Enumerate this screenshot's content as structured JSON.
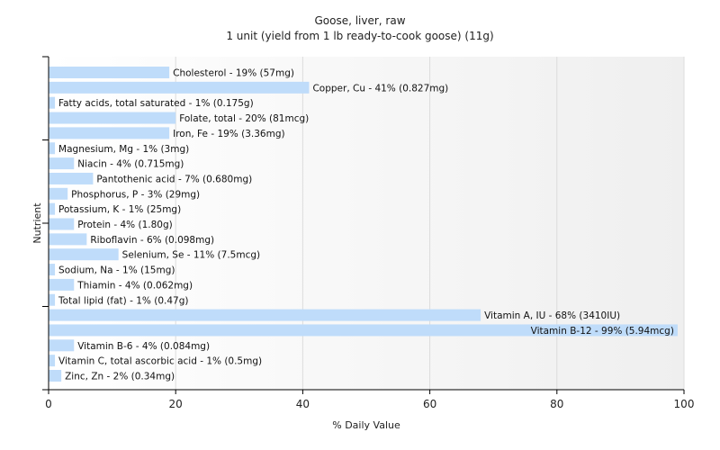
{
  "chart_data": {
    "type": "bar",
    "orientation": "horizontal",
    "title": "Goose, liver, raw",
    "subtitle": "1 unit (yield from 1 lb ready-to-cook goose) (11g)",
    "xlabel": "% Daily Value",
    "ylabel": "Nutrient",
    "xlim": [
      0,
      100
    ],
    "xticks": [
      0,
      20,
      40,
      60,
      80,
      100
    ],
    "grid": true,
    "bar_color": "#bfdcfa",
    "categories": [
      "Cholesterol",
      "Copper, Cu",
      "Fatty acids, total saturated",
      "Folate, total",
      "Iron, Fe",
      "Magnesium, Mg",
      "Niacin",
      "Pantothenic acid",
      "Phosphorus, P",
      "Potassium, K",
      "Protein",
      "Riboflavin",
      "Selenium, Se",
      "Sodium, Na",
      "Thiamin",
      "Total lipid (fat)",
      "Vitamin A, IU",
      "Vitamin B-12",
      "Vitamin B-6",
      "Vitamin C, total ascorbic acid",
      "Zinc, Zn"
    ],
    "values": [
      19,
      41,
      1,
      20,
      19,
      1,
      4,
      7,
      3,
      1,
      4,
      6,
      11,
      1,
      4,
      1,
      68,
      99,
      4,
      1,
      2
    ],
    "labels": [
      "Cholesterol - 19% (57mg)",
      "Copper, Cu - 41% (0.827mg)",
      "Fatty acids, total saturated - 1% (0.175g)",
      "Folate, total - 20% (81mcg)",
      "Iron, Fe - 19% (3.36mg)",
      "Magnesium, Mg - 1% (3mg)",
      "Niacin - 4% (0.715mg)",
      "Pantothenic acid - 7% (0.680mg)",
      "Phosphorus, P - 3% (29mg)",
      "Potassium, K - 1% (25mg)",
      "Protein - 4% (1.80g)",
      "Riboflavin - 6% (0.098mg)",
      "Selenium, Se - 11% (7.5mcg)",
      "Sodium, Na - 1% (15mg)",
      "Thiamin - 4% (0.062mg)",
      "Total lipid (fat) - 1% (0.47g)",
      "Vitamin A, IU - 68% (3410IU)",
      "Vitamin B-12 - 99% (5.94mcg)",
      "Vitamin B-6 - 4% (0.084mg)",
      "Vitamin C, total ascorbic acid - 1% (0.5mg)",
      "Zinc, Zn - 2% (0.34mg)"
    ]
  }
}
